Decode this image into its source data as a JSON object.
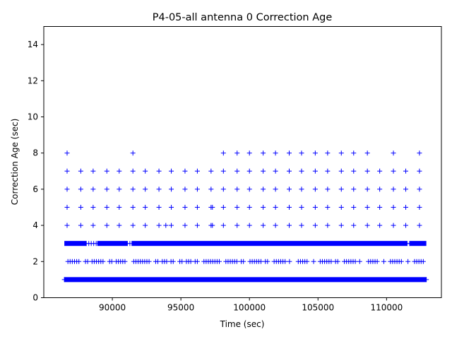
{
  "chart_data": {
    "type": "scatter",
    "title": "P4-05-all antenna 0 Correction Age",
    "xlabel": "Time (sec)",
    "ylabel": "Correction Age (sec)",
    "xlim": [
      85000,
      114000
    ],
    "ylim": [
      0,
      15
    ],
    "xticks": [
      90000,
      95000,
      100000,
      105000,
      110000
    ],
    "yticks": [
      0,
      2,
      4,
      6,
      8,
      10,
      12,
      14
    ],
    "marker": "+",
    "marker_color": "#0000ff",
    "grid": false,
    "legend": "none",
    "series": [
      {
        "y": 1,
        "x_start": 86500,
        "x_end": 112900,
        "density": "continuous"
      },
      {
        "y": 3,
        "x_start": 86500,
        "x_end": 112900,
        "density": "near-continuous"
      },
      {
        "y": 2,
        "x_start": 86600,
        "x_end": 112800,
        "density": "intermittent"
      },
      {
        "y": 4,
        "x": [
          86700,
          87700,
          88600,
          89600,
          90500,
          91500,
          92400,
          93400,
          93900,
          94300,
          95300,
          96200,
          97200,
          97300,
          98100,
          99100,
          100000,
          101000,
          101900,
          102900,
          103800,
          104800,
          105700,
          106700,
          107600,
          108600,
          109500,
          110500,
          111400,
          112400
        ]
      },
      {
        "y": 5,
        "x": [
          86700,
          87700,
          88600,
          89600,
          90500,
          91500,
          92400,
          93400,
          94300,
          95300,
          96200,
          97200,
          97300,
          98100,
          99100,
          100000,
          101000,
          101900,
          102900,
          103800,
          104800,
          105700,
          106700,
          107600,
          108600,
          109500,
          110500,
          111400,
          112400
        ]
      },
      {
        "y": 6,
        "x": [
          86700,
          87700,
          88600,
          89600,
          90500,
          91500,
          92400,
          93400,
          94300,
          95300,
          96200,
          97200,
          98100,
          99100,
          100000,
          101000,
          101900,
          102900,
          103800,
          104800,
          105700,
          106700,
          107600,
          108600,
          109500,
          110500,
          111400,
          112400
        ]
      },
      {
        "y": 7,
        "x": [
          86700,
          87700,
          88600,
          89600,
          90500,
          91500,
          92400,
          93400,
          94300,
          95300,
          96200,
          97200,
          98100,
          99100,
          100000,
          101000,
          101900,
          102900,
          103800,
          104800,
          105700,
          106700,
          107600,
          108600,
          109500,
          110500,
          111400,
          112400
        ]
      },
      {
        "y": 8,
        "x": [
          86700,
          91500,
          98100,
          99100,
          100000,
          101000,
          101900,
          102900,
          103800,
          104800,
          105700,
          106700,
          107600,
          108600,
          110500,
          112400
        ]
      }
    ]
  }
}
